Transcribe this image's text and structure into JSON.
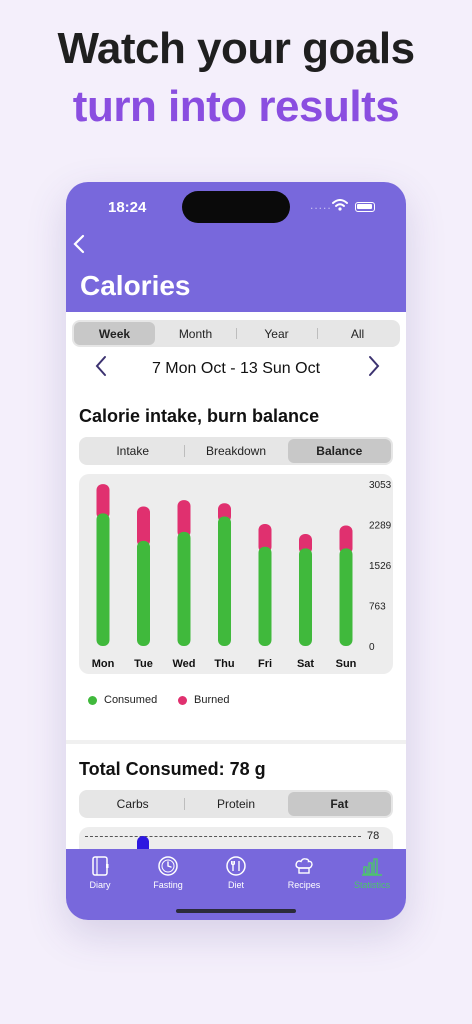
{
  "promo": {
    "line1": "Watch your goals",
    "line2": "turn into results"
  },
  "status_bar": {
    "time": "18:24",
    "signal": "....."
  },
  "header": {
    "back_icon": "chevron-left-icon",
    "title": "Calories"
  },
  "period_tabs": {
    "options": [
      "Week",
      "Month",
      "Year",
      "All"
    ],
    "selected": "Week"
  },
  "date_range": {
    "label": "7 Mon Oct - 13 Sun Oct"
  },
  "balance_section": {
    "title": "Calorie intake, burn balance",
    "tabs": [
      "Intake",
      "Breakdown",
      "Balance"
    ],
    "selected": "Balance"
  },
  "chart_data": {
    "type": "bar",
    "stacked": true,
    "categories": [
      "Mon",
      "Tue",
      "Wed",
      "Thu",
      "Fri",
      "Sat",
      "Sun"
    ],
    "series": [
      {
        "name": "Consumed",
        "color": "#40b93c",
        "values": [
          2500,
          1980,
          2150,
          2440,
          1870,
          1840,
          1840
        ]
      },
      {
        "name": "Burned",
        "color": "#e0306f",
        "values": [
          550,
          650,
          600,
          250,
          430,
          270,
          430
        ]
      }
    ],
    "yticks": [
      "3053",
      "2289",
      "1526",
      "763",
      "0"
    ],
    "ylim": [
      0,
      3053
    ],
    "legend": [
      "Consumed",
      "Burned"
    ],
    "legend_position": "bottom-left"
  },
  "consumed_section": {
    "title": "Total Consumed: 78 g",
    "tabs": [
      "Carbs",
      "Protein",
      "Fat"
    ],
    "selected": "Fat",
    "goal_line_label": "78"
  },
  "tabbar": {
    "items": [
      {
        "label": "Diary",
        "icon": "diary-icon"
      },
      {
        "label": "Fasting",
        "icon": "fasting-clock-icon"
      },
      {
        "label": "Diet",
        "icon": "diet-plate-icon"
      },
      {
        "label": "Recipes",
        "icon": "chef-hat-icon"
      },
      {
        "label": "Statistics",
        "icon": "bar-chart-icon"
      }
    ],
    "active": "Statistics",
    "active_color": "#4cc66a"
  },
  "colors": {
    "header": "#7868dc",
    "accent_text": "#8a4ee0",
    "background": "#f4effb"
  }
}
